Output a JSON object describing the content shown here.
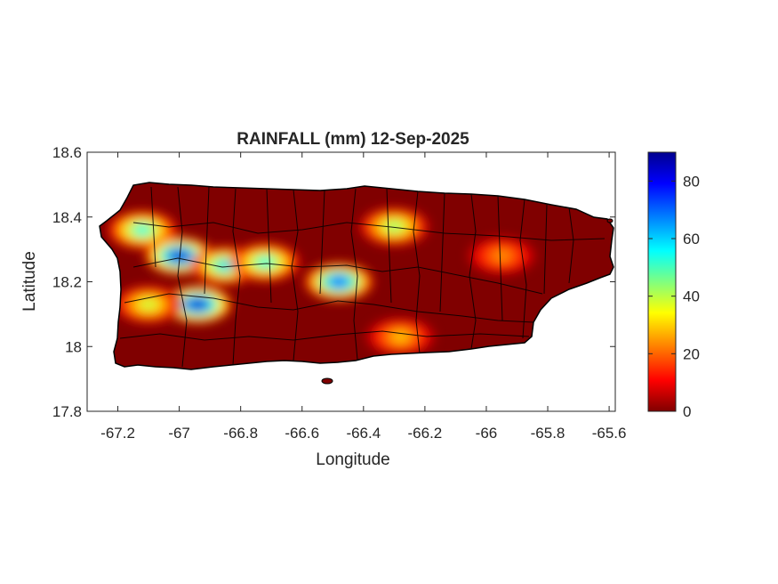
{
  "map": {
    "title": "RAINFALL (mm) 12-Sep-2025",
    "xlabel": "Longitude",
    "ylabel": "Latitude",
    "xlim": [
      -67.3,
      -65.58
    ],
    "ylim": [
      17.8,
      18.6
    ],
    "x_ticks": [
      "-67.2",
      "-67",
      "-66.8",
      "-66.6",
      "-66.4",
      "-66.2",
      "-66",
      "-65.8",
      "-65.6"
    ],
    "y_ticks": [
      "18.6",
      "18.4",
      "18.2",
      "18",
      "17.8"
    ],
    "colormap": "jet",
    "background_color": "#800000",
    "colorbar": {
      "ticks": [
        "80",
        "60",
        "40",
        "20",
        "0"
      ],
      "range": [
        0,
        90
      ]
    },
    "rain_cells": [
      {
        "lon": -67.12,
        "lat": 18.36,
        "mm": 55
      },
      {
        "lon": -67.0,
        "lat": 18.28,
        "mm": 85
      },
      {
        "lon": -66.85,
        "lat": 18.25,
        "mm": 60
      },
      {
        "lon": -66.72,
        "lat": 18.26,
        "mm": 55
      },
      {
        "lon": -66.48,
        "lat": 18.2,
        "mm": 75
      },
      {
        "lon": -66.94,
        "lat": 18.13,
        "mm": 85
      },
      {
        "lon": -67.1,
        "lat": 18.13,
        "mm": 40
      },
      {
        "lon": -66.3,
        "lat": 18.37,
        "mm": 45
      },
      {
        "lon": -66.28,
        "lat": 18.03,
        "mm": 30
      },
      {
        "lon": -65.95,
        "lat": 18.28,
        "mm": 25
      }
    ]
  }
}
